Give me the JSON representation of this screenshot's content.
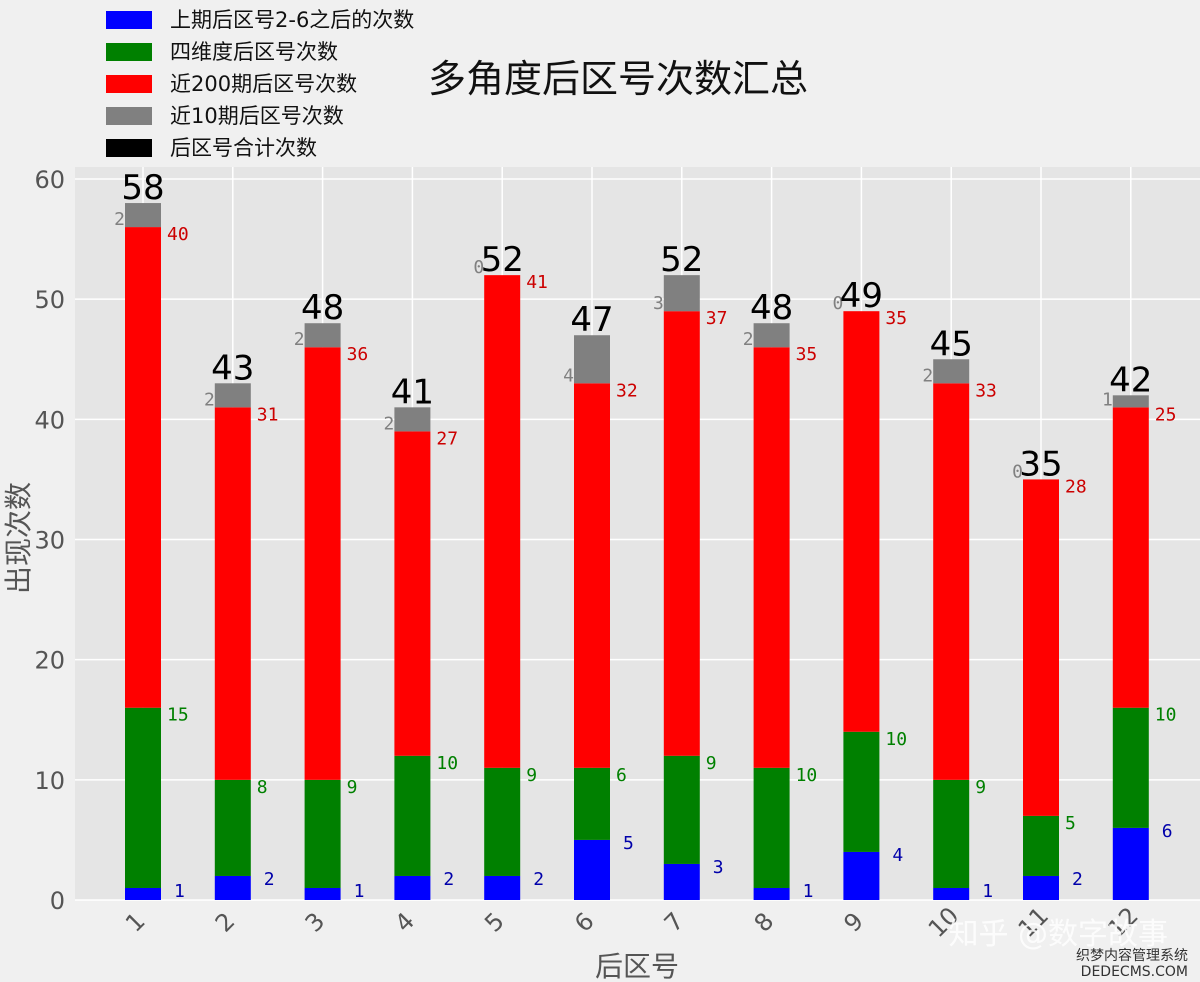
{
  "chart_data": {
    "type": "bar",
    "stacked": true,
    "title": "多角度后区号次数汇总",
    "xlabel": "后区号",
    "ylabel": "出现次数",
    "ylim": [
      0,
      61
    ],
    "yticks": [
      0,
      10,
      20,
      30,
      40,
      50,
      60
    ],
    "grid": true,
    "legend_position": "top-left",
    "categories": [
      "1",
      "2",
      "3",
      "4",
      "5",
      "6",
      "7",
      "8",
      "9",
      "10",
      "11",
      "12"
    ],
    "series": [
      {
        "name": "上期后区号2-6之后的次数",
        "color": "#0000ff",
        "label_color": "#0000aa",
        "values": [
          1,
          2,
          1,
          2,
          2,
          5,
          3,
          1,
          4,
          1,
          2,
          6
        ]
      },
      {
        "name": "四维度后区号次数",
        "color": "#008000",
        "label_color": "#008000",
        "values": [
          15,
          8,
          9,
          10,
          9,
          6,
          9,
          10,
          10,
          9,
          5,
          10
        ]
      },
      {
        "name": "近200期后区号次数",
        "color": "#ff0000",
        "label_color": "#cc0000",
        "values": [
          40,
          31,
          36,
          27,
          41,
          32,
          37,
          35,
          35,
          33,
          28,
          25
        ]
      },
      {
        "name": "近10期后区号次数",
        "color": "#808080",
        "label_color": "#808080",
        "values": [
          2,
          2,
          2,
          2,
          0,
          4,
          3,
          2,
          0,
          2,
          0,
          1
        ]
      }
    ],
    "totals_series": {
      "name": "后区号合计次数",
      "color": "#000000",
      "values": [
        58,
        43,
        48,
        41,
        52,
        47,
        52,
        48,
        49,
        45,
        35,
        42
      ]
    }
  },
  "watermark": {
    "main": "知乎 @数字故事",
    "sub": "织梦内容管理系统",
    "url": "DEDECMS.COM"
  }
}
